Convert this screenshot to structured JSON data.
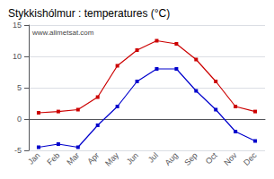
{
  "chart_data": {
    "type": "line",
    "title": "Stykkishólmur : temperatures (°C)",
    "categories": [
      "Jan",
      "Feb",
      "Mar",
      "Apr",
      "May",
      "Jun",
      "Jul",
      "Aug",
      "Sep",
      "Oct",
      "Nov",
      "Dec"
    ],
    "series": [
      {
        "color": "#cc0000",
        "marker": "square",
        "values": [
          1.0,
          1.2,
          1.5,
          3.5,
          8.5,
          11.0,
          12.5,
          12.0,
          9.5,
          6.0,
          2.0,
          1.2
        ]
      },
      {
        "color": "#0000cc",
        "marker": "square",
        "values": [
          -4.5,
          -4.0,
          -4.5,
          -1.0,
          2.0,
          6.0,
          8.0,
          8.0,
          4.5,
          1.5,
          -2.0,
          -3.5
        ]
      }
    ],
    "ylim": [
      -5,
      15
    ],
    "yticks": [
      -5,
      0,
      5,
      10,
      15
    ],
    "grid": true,
    "annotations": [
      "www.allmetsat.com"
    ]
  }
}
